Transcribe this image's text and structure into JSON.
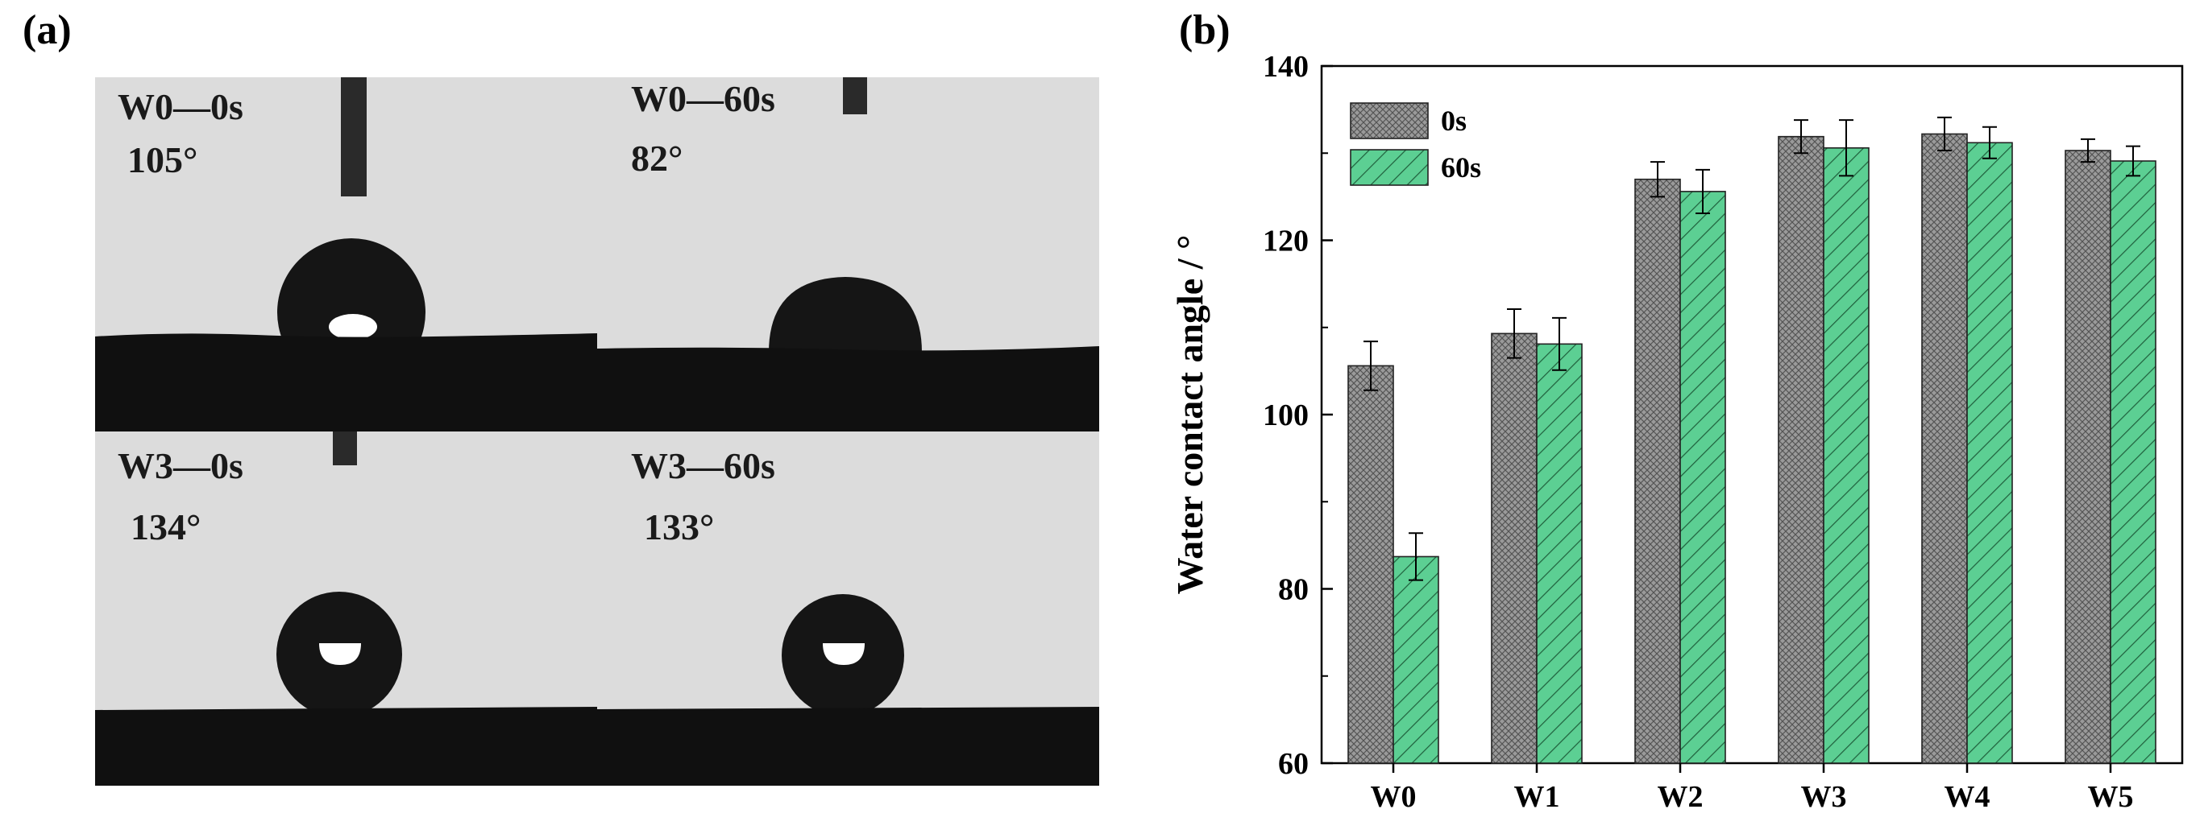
{
  "panel_a": {
    "label": "(a)",
    "photos": [
      {
        "caption": "W0—0s",
        "angle": "105°"
      },
      {
        "caption": "W0—60s",
        "angle": "82°"
      },
      {
        "caption": "W3—0s",
        "angle": "134°"
      },
      {
        "caption": "W3—60s",
        "angle": "133°"
      }
    ]
  },
  "panel_b": {
    "label": "(b)"
  },
  "chart_data": {
    "type": "bar",
    "title": "",
    "xlabel": "",
    "ylabel": "Water contact angle / °",
    "ylim": [
      60,
      140
    ],
    "yticks": [
      60,
      80,
      100,
      120,
      140
    ],
    "categories": [
      "W0",
      "W1",
      "W2",
      "W3",
      "W4",
      "W5"
    ],
    "series": [
      {
        "name": "0s",
        "values": [
          105.6,
          109.3,
          127.0,
          131.9,
          132.2,
          130.3
        ],
        "errors": [
          2.8,
          2.8,
          2.0,
          1.9,
          1.9,
          1.3
        ],
        "color": "#8c8c8c",
        "pattern": "crosshatch"
      },
      {
        "name": "60s",
        "values": [
          83.7,
          108.1,
          125.6,
          130.6,
          131.2,
          129.1
        ],
        "errors": [
          2.7,
          3.0,
          2.5,
          3.2,
          1.8,
          1.7
        ],
        "color": "#5ccf93",
        "pattern": "diagonal"
      }
    ],
    "legend_position": "top-left",
    "grid": false
  }
}
